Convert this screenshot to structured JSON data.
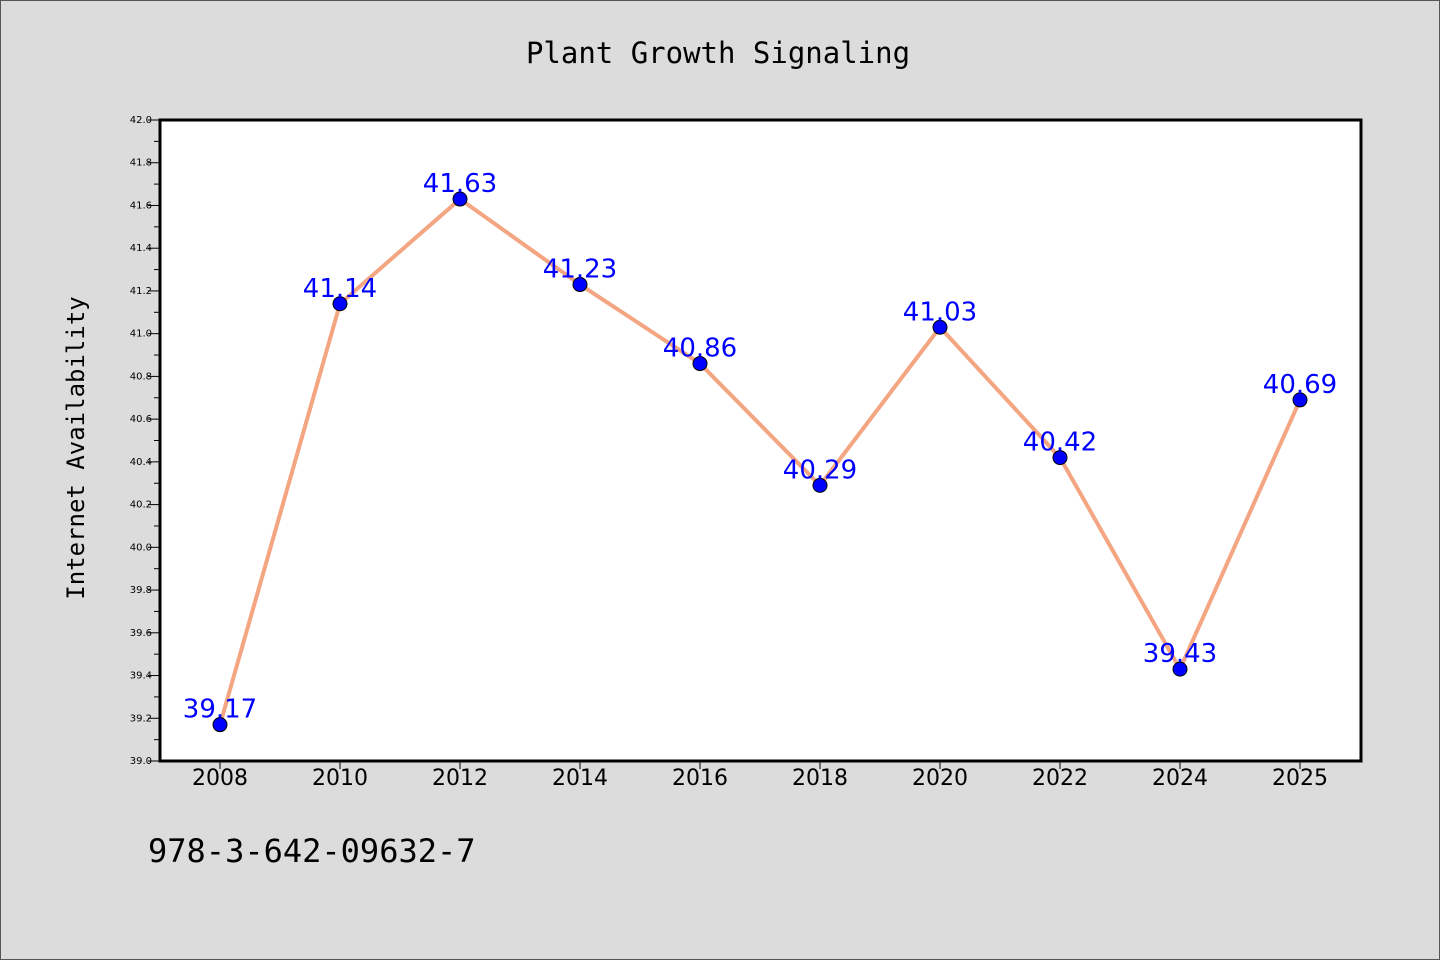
{
  "chart_data": {
    "type": "line",
    "title": "Plant Growth Signaling",
    "xlabel": "",
    "ylabel": "Internet Availability",
    "categories": [
      "2008",
      "2010",
      "2012",
      "2014",
      "2016",
      "2018",
      "2020",
      "2022",
      "2024",
      "2025"
    ],
    "values": [
      39.17,
      41.14,
      41.63,
      41.23,
      40.86,
      40.29,
      41.03,
      40.42,
      39.43,
      40.69
    ],
    "data_labels": [
      "39.17",
      "41.14",
      "41.63",
      "41.23",
      "40.86",
      "40.29",
      "41.03",
      "40.42",
      "39.43",
      "40.69"
    ],
    "ylim": [
      39.0,
      42.0
    ],
    "yticks": [
      "39.0",
      "39.2",
      "39.4",
      "39.6",
      "39.8",
      "40.0",
      "40.2",
      "40.4",
      "40.6",
      "40.8",
      "41.0",
      "41.2",
      "41.4",
      "41.6",
      "41.8",
      "42.0"
    ],
    "grid": false,
    "line_color": "#f4a582",
    "marker_color": "#0000ff",
    "label_color": "#0000ff"
  },
  "footer": {
    "isbn": "978-3-642-09632-7"
  }
}
